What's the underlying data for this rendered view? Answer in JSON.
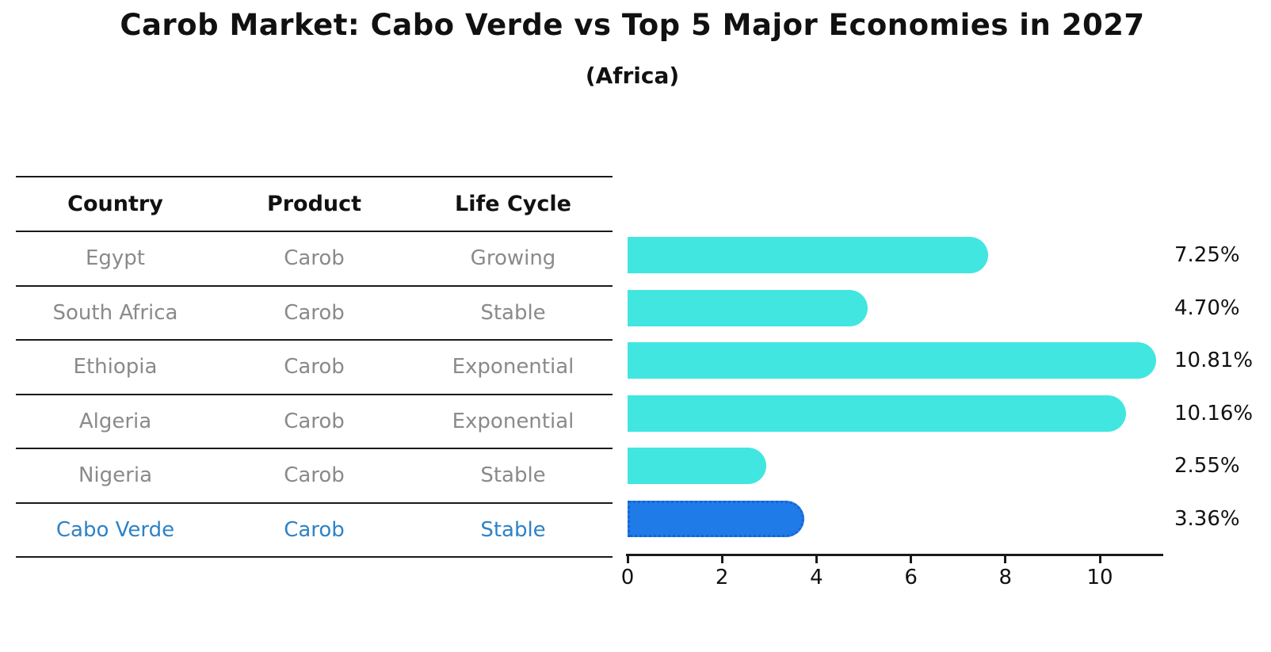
{
  "chart_data": {
    "type": "bar",
    "orientation": "horizontal",
    "title": "Carob Market: Cabo Verde vs Top 5 Major Economies in 2027",
    "subtitle": "(Africa)",
    "categories": [
      "Egypt",
      "South Africa",
      "Ethiopia",
      "Algeria",
      "Nigeria",
      "Cabo Verde"
    ],
    "values": [
      7.25,
      4.7,
      10.81,
      10.16,
      2.55,
      3.36
    ],
    "value_labels": [
      "7.25%",
      "4.70%",
      "10.81%",
      "10.16%",
      "2.55%",
      "3.36%"
    ],
    "x_ticks": [
      0,
      2,
      4,
      6,
      8,
      10
    ],
    "xlim": [
      0,
      11.35
    ],
    "grid": false,
    "legend": false,
    "highlight_index": 5,
    "bar_color": "#42E6E0",
    "highlight_color": "#1E7BE8",
    "highlight_border_color": "#1663D6",
    "highlight_text_color": "#2E82C6"
  },
  "table": {
    "headers": {
      "country": "Country",
      "product": "Product",
      "life_cycle": "Life Cycle"
    },
    "rows": [
      {
        "country": "Egypt",
        "product": "Carob",
        "life_cycle": "Growing",
        "highlight": false
      },
      {
        "country": "South Africa",
        "product": "Carob",
        "life_cycle": "Stable",
        "highlight": false
      },
      {
        "country": "Ethiopia",
        "product": "Carob",
        "life_cycle": "Exponential",
        "highlight": false
      },
      {
        "country": "Algeria",
        "product": "Carob",
        "life_cycle": "Exponential",
        "highlight": false
      },
      {
        "country": "Nigeria",
        "product": "Carob",
        "life_cycle": "Stable",
        "highlight": false
      },
      {
        "country": "Cabo Verde",
        "product": "Carob",
        "life_cycle": "Stable",
        "highlight": true
      }
    ]
  }
}
